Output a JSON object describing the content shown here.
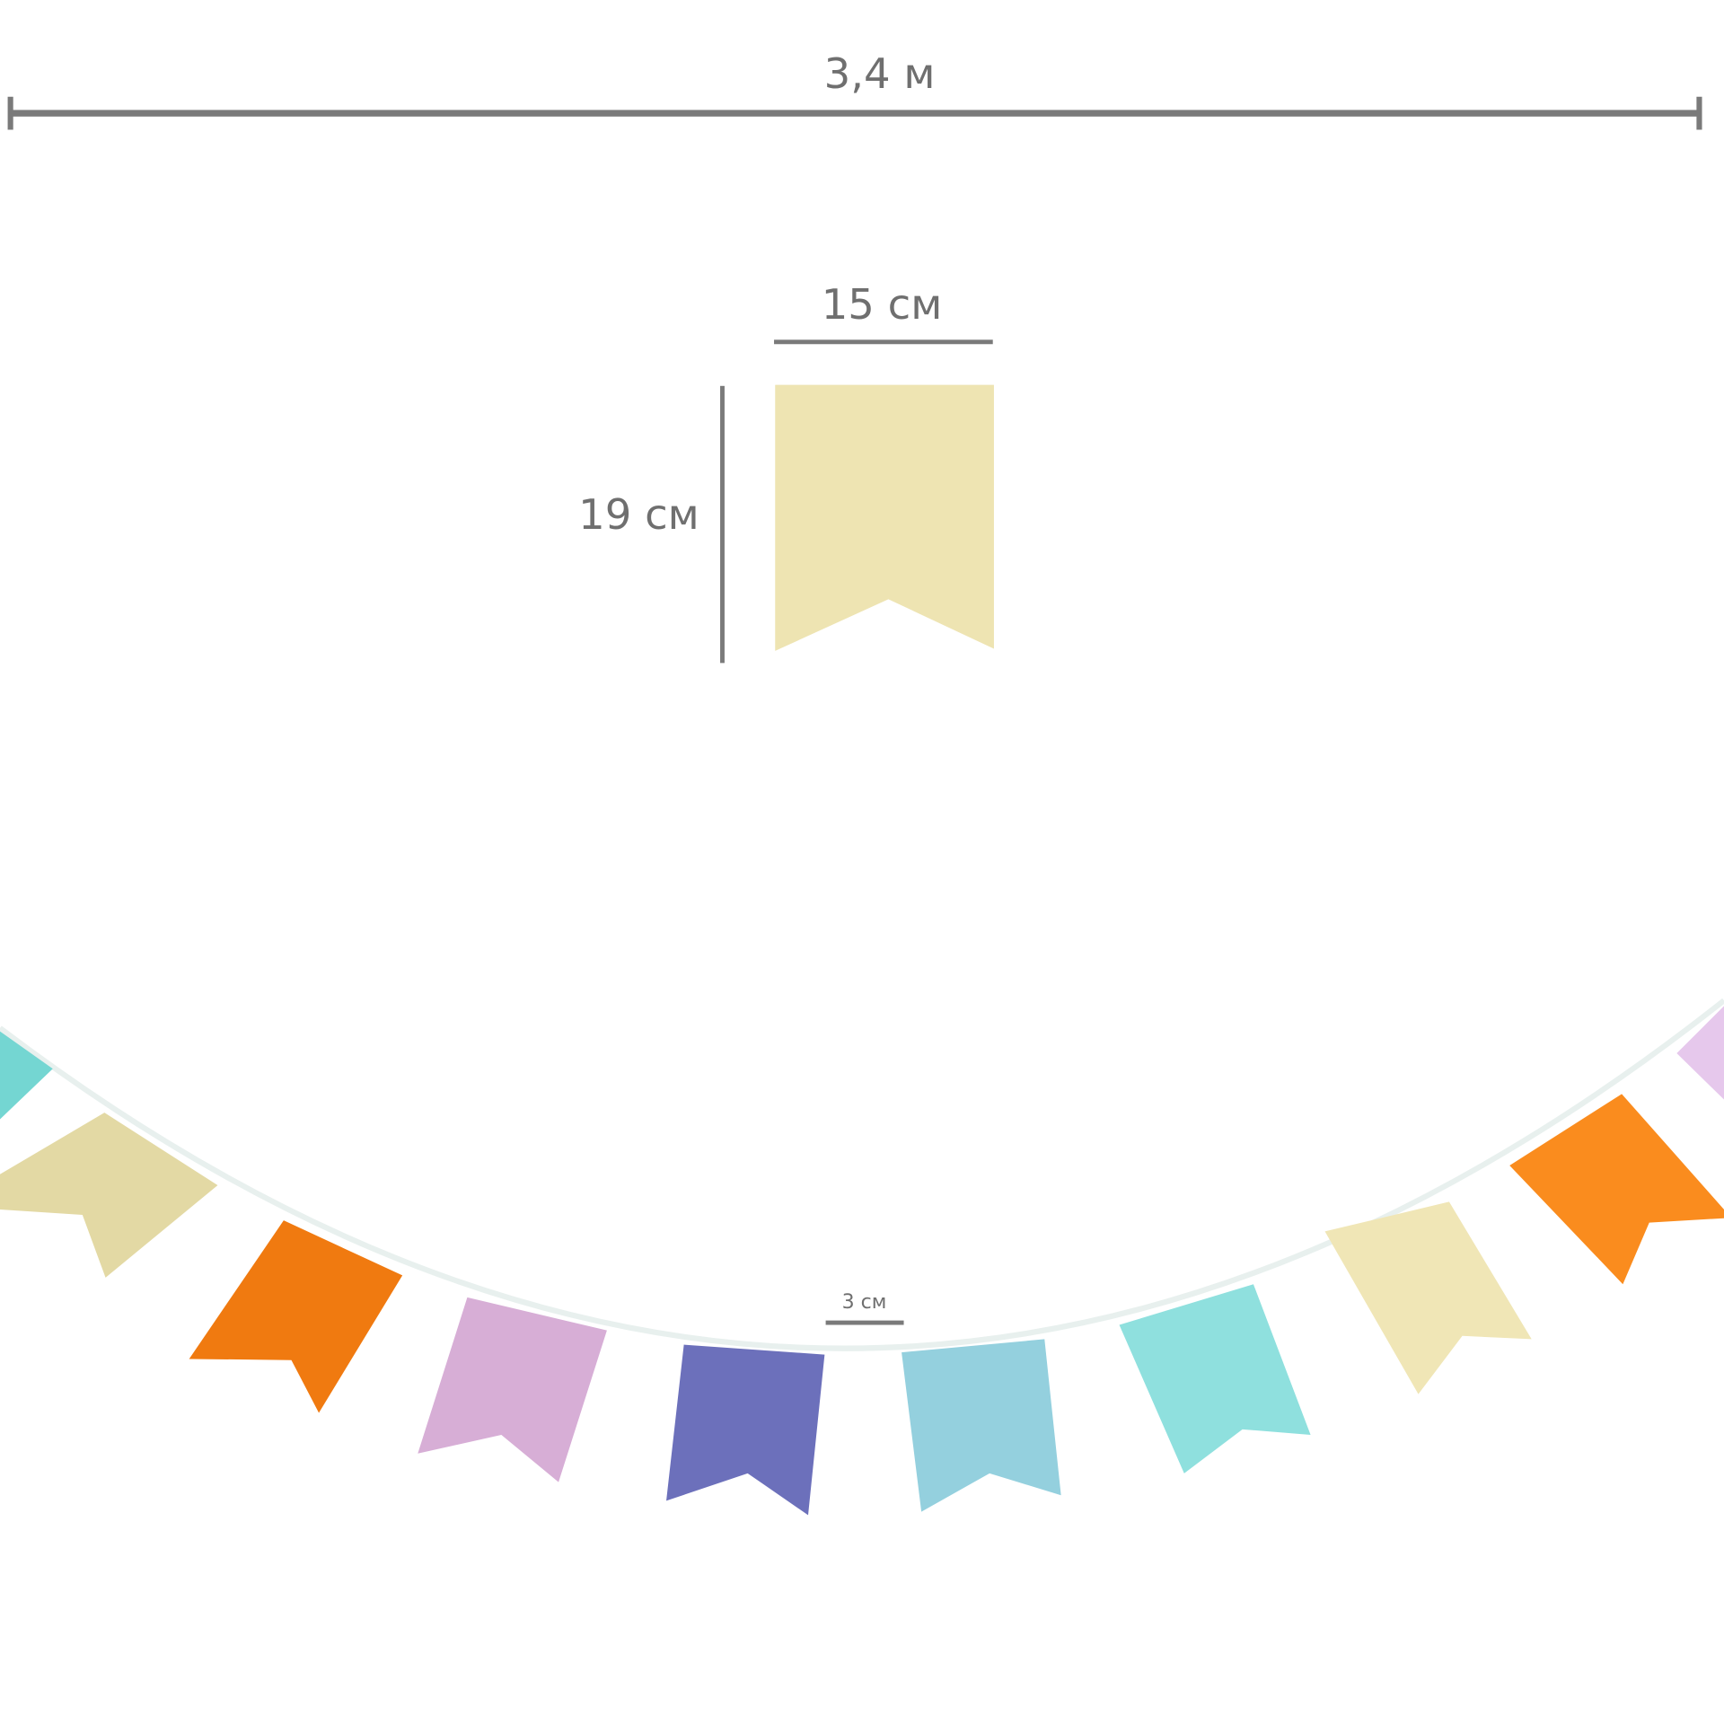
{
  "dimensions": {
    "total_length": "3,4 м",
    "flag_width": "15 см",
    "flag_height": "19 см",
    "flag_spacing": "3 см"
  },
  "colors": {
    "dimension_line": "#7a7a7a",
    "sample_flag": "#eee4b2",
    "string": "#e8f0ee"
  },
  "flags": [
    {
      "color": "#74d6d2"
    },
    {
      "color": "#e3d9a4"
    },
    {
      "color": "#f07a10"
    },
    {
      "color": "#d7aed6"
    },
    {
      "color": "#6c70bb"
    },
    {
      "color": "#94d0de"
    },
    {
      "color": "#8fe0de"
    },
    {
      "color": "#f0e6b6"
    },
    {
      "color": "#fa8c1e"
    },
    {
      "color": "#e6c8ec"
    }
  ]
}
